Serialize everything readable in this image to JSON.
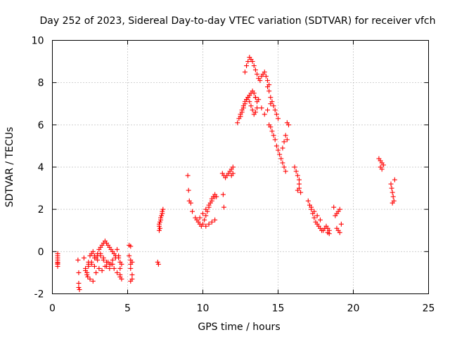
{
  "chart_data": {
    "type": "scatter",
    "title": "Day 252 of 2023, Sidereal Day-to-day VTEC variation (SDTVAR) for receiver vfch",
    "xlabel": "GPS time / hours",
    "ylabel": "SDTVAR / TECUs",
    "xlim": [
      0,
      25
    ],
    "ylim": [
      -2,
      10
    ],
    "xticks": [
      "0",
      "5",
      "10",
      "15",
      "20",
      "25"
    ],
    "yticks": [
      "-2",
      "0",
      "2",
      "4",
      "6",
      "8",
      "10"
    ],
    "grid": true,
    "marker": "+",
    "series": [
      {
        "name": "SDTVAR",
        "color": "#ff0000",
        "x": [
          0.35,
          0.35,
          0.35,
          0.35,
          0.35,
          0.35,
          0.35,
          0.35,
          1.7,
          1.75,
          1.75,
          1.75,
          1.8,
          2.1,
          2.2,
          2.3,
          2.35,
          2.4,
          2.5,
          2.6,
          2.7,
          2.8,
          2.9,
          3.0,
          3.1,
          3.2,
          3.3,
          3.4,
          3.5,
          3.6,
          3.7,
          3.8,
          3.9,
          4.0,
          4.1,
          4.2,
          2.3,
          2.5,
          2.7,
          2.9,
          3.1,
          3.3,
          3.5,
          3.7,
          3.9,
          4.1,
          4.3,
          4.5,
          2.4,
          2.6,
          2.8,
          3.0,
          3.2,
          3.4,
          3.6,
          3.8,
          4.0,
          4.2,
          4.4,
          2.2,
          2.4,
          2.6,
          2.8,
          3.0,
          3.2,
          3.4,
          3.6,
          3.8,
          4.0,
          4.3,
          4.4,
          4.5,
          4.5,
          4.5,
          4.6,
          4.6,
          5.1,
          5.1,
          5.2,
          5.2,
          5.2,
          5.3,
          5.3,
          5.2,
          5.2,
          5.3,
          7.0,
          7.05,
          7.1,
          7.1,
          7.1,
          7.15,
          7.2,
          7.2,
          7.25,
          7.3,
          7.3,
          7.35,
          7.15,
          9.0,
          9.05,
          9.1,
          9.2,
          9.3,
          9.5,
          9.6,
          9.7,
          9.8,
          9.9,
          10.0,
          10.1,
          10.2,
          10.3,
          10.4,
          10.5,
          10.6,
          10.7,
          10.8,
          10.9,
          9.8,
          10.0,
          10.2,
          10.4,
          10.6,
          10.8,
          10.2,
          10.4,
          10.6,
          10.8,
          11.3,
          11.4,
          11.35,
          11.4,
          11.5,
          11.6,
          11.7,
          11.8,
          11.9,
          12.0,
          12.0,
          11.9,
          12.3,
          12.4,
          12.5,
          12.6,
          12.7,
          12.8,
          12.9,
          13.0,
          13.1,
          13.2,
          13.3,
          13.4,
          13.5,
          13.6,
          12.5,
          12.6,
          12.7,
          12.8,
          12.9,
          13.0,
          13.1,
          13.2,
          13.3,
          13.4,
          13.5,
          13.6,
          12.8,
          12.9,
          13.0,
          13.1,
          13.2,
          13.3,
          13.4,
          13.5,
          13.6,
          13.7,
          13.8,
          13.9,
          14.0,
          14.1,
          14.2,
          14.3,
          14.4,
          13.5,
          13.7,
          13.9,
          14.1,
          14.3,
          14.5,
          14.3,
          14.4,
          14.5,
          14.6,
          14.7,
          14.8,
          14.9,
          15.0,
          14.4,
          14.5,
          14.6,
          14.7,
          14.8,
          14.9,
          15.0,
          15.1,
          15.2,
          15.3,
          15.4,
          15.5,
          15.5,
          15.6,
          15.6,
          15.7,
          15.3,
          15.4,
          16.1,
          16.2,
          16.3,
          16.4,
          16.4,
          16.4,
          16.5,
          16.3,
          17.0,
          17.1,
          17.2,
          17.3,
          17.4,
          17.5,
          17.6,
          17.7,
          17.8,
          17.9,
          18.0,
          18.1,
          17.2,
          17.4,
          17.6,
          17.8,
          18.2,
          18.3,
          18.4,
          18.3,
          18.4,
          18.8,
          18.9,
          19.0,
          19.1,
          19.2,
          19.0,
          19.1,
          18.9,
          18.7,
          21.7,
          21.8,
          21.9,
          22.0,
          21.8,
          21.9,
          22.5,
          22.55,
          22.6,
          22.65,
          22.7,
          22.6,
          22.75
        ],
        "y": [
          -0.1,
          -0.3,
          -0.4,
          -0.5,
          -0.6,
          -0.7,
          -0.2,
          -0.55,
          -0.4,
          -1.0,
          -1.5,
          -1.7,
          -1.8,
          -0.3,
          -0.8,
          -1.0,
          -1.2,
          -0.6,
          -0.2,
          -0.1,
          0.0,
          -0.2,
          -0.3,
          -0.1,
          0.1,
          0.2,
          0.3,
          0.4,
          0.5,
          0.4,
          0.3,
          0.2,
          0.1,
          0.0,
          -0.1,
          -0.2,
          -1.1,
          -1.3,
          -1.4,
          -1.0,
          -0.8,
          -0.9,
          -0.7,
          -0.5,
          -0.6,
          -0.8,
          -1.0,
          -1.2,
          -0.5,
          -0.6,
          -0.7,
          -0.4,
          -0.2,
          -0.3,
          -0.5,
          -0.6,
          -0.4,
          -0.3,
          -0.2,
          -0.9,
          -0.7,
          -0.5,
          -0.3,
          -0.2,
          -0.1,
          -0.4,
          -0.7,
          -0.8,
          -0.6,
          0.1,
          -0.3,
          -0.5,
          -0.8,
          -1.1,
          -1.3,
          -0.6,
          0.3,
          -0.2,
          -0.4,
          -0.6,
          -0.8,
          -1.1,
          -1.3,
          -1.4,
          0.25,
          -0.5,
          -0.5,
          -0.6,
          1.0,
          1.2,
          1.3,
          1.4,
          1.5,
          1.6,
          1.7,
          1.8,
          1.9,
          2.0,
          1.1,
          3.6,
          2.9,
          2.4,
          2.3,
          1.9,
          1.6,
          1.5,
          1.4,
          1.3,
          1.2,
          1.3,
          1.5,
          1.7,
          1.9,
          2.1,
          2.3,
          2.5,
          2.6,
          2.7,
          2.6,
          1.6,
          1.8,
          2.0,
          2.2,
          2.4,
          2.6,
          1.2,
          1.3,
          1.4,
          1.5,
          3.7,
          3.6,
          2.7,
          2.1,
          3.5,
          3.6,
          3.7,
          3.8,
          3.9,
          4.0,
          3.7,
          3.6,
          6.1,
          6.3,
          6.5,
          6.7,
          6.9,
          7.1,
          7.2,
          7.3,
          7.4,
          7.5,
          7.6,
          7.5,
          7.3,
          7.1,
          6.4,
          6.6,
          6.8,
          7.0,
          7.2,
          7.3,
          7.1,
          6.9,
          6.7,
          6.5,
          6.6,
          6.8,
          8.5,
          8.8,
          9.0,
          9.2,
          9.1,
          9.0,
          8.8,
          8.6,
          8.4,
          8.2,
          8.1,
          8.3,
          8.4,
          8.5,
          8.3,
          8.1,
          7.9,
          7.3,
          7.2,
          6.8,
          6.5,
          6.7,
          7.0,
          7.8,
          7.6,
          7.3,
          7.1,
          6.9,
          6.7,
          6.5,
          6.3,
          6.0,
          5.9,
          5.7,
          5.5,
          5.3,
          5.0,
          4.8,
          4.6,
          4.4,
          4.2,
          4.0,
          3.8,
          5.5,
          5.3,
          6.1,
          6.0,
          4.9,
          5.2,
          4.0,
          3.8,
          3.6,
          3.4,
          3.2,
          3.0,
          2.8,
          2.9,
          2.4,
          2.2,
          2.0,
          1.8,
          1.6,
          1.4,
          1.3,
          1.2,
          1.1,
          1.0,
          1.0,
          1.1,
          2.1,
          1.9,
          1.7,
          1.5,
          1.2,
          1.1,
          1.0,
          0.9,
          0.85,
          1.7,
          1.8,
          1.9,
          2.0,
          1.3,
          1.0,
          0.9,
          1.1,
          2.1,
          4.4,
          4.3,
          4.2,
          4.1,
          4.0,
          3.9,
          3.2,
          3.0,
          2.8,
          2.6,
          2.4,
          2.3,
          3.4
        ]
      }
    ]
  }
}
